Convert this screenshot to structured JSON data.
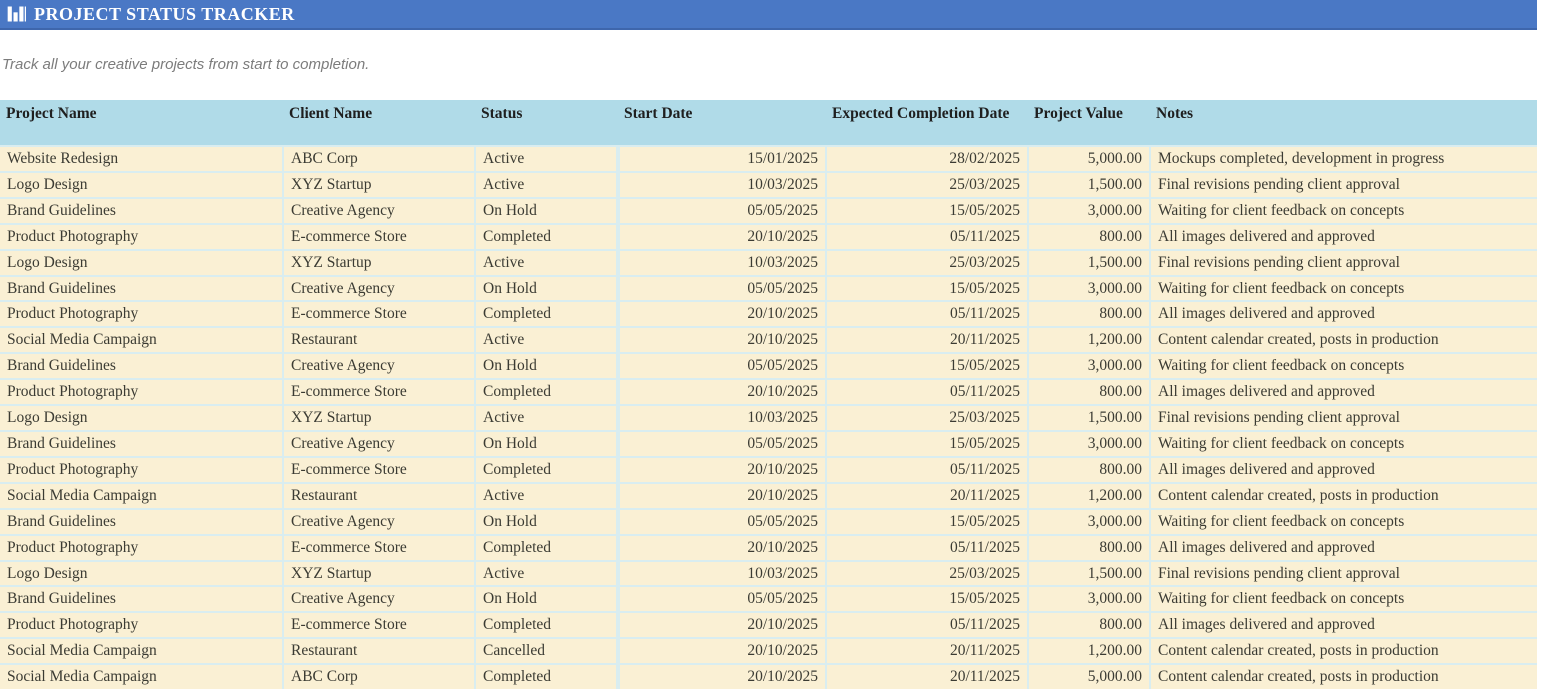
{
  "header": {
    "title": "PROJECT STATUS TRACKER",
    "icon": "bar-chart-icon"
  },
  "subtitle": "Track all your creative projects from start to completion.",
  "colors": {
    "title_bar_bg": "#4a78c5",
    "title_bar_edge": "#3e66ac",
    "title_text": "#ffffff",
    "subtitle_text": "#7c7c7c",
    "header_row_bg": "#b0dbe8",
    "row_bg": "#faf0d4",
    "grid_line": "#d9edf0",
    "body_text": "#3b3b33"
  },
  "table": {
    "columns": [
      {
        "label": "Project Name",
        "key": "project-name",
        "align": "left"
      },
      {
        "label": "Client Name",
        "key": "client-name",
        "align": "left"
      },
      {
        "label": "Status",
        "key": "status",
        "align": "left"
      },
      {
        "label": "Start Date",
        "key": "start-date",
        "align": "right"
      },
      {
        "label": "Expected Completion Date",
        "key": "expected-completion",
        "align": "right"
      },
      {
        "label": "Project Value",
        "key": "project-value",
        "align": "right"
      },
      {
        "label": "Notes",
        "key": "notes",
        "align": "left"
      }
    ],
    "rows": [
      [
        "Website Redesign",
        "ABC Corp",
        "Active",
        "15/01/2025",
        "28/02/2025",
        "5,000.00",
        "Mockups completed, development in progress"
      ],
      [
        "Logo Design",
        "XYZ Startup",
        "Active",
        "10/03/2025",
        "25/03/2025",
        "1,500.00",
        "Final revisions pending client approval"
      ],
      [
        "Brand Guidelines",
        "Creative Agency",
        "On Hold",
        "05/05/2025",
        "15/05/2025",
        "3,000.00",
        "Waiting for client feedback on concepts"
      ],
      [
        "Product Photography",
        "E-commerce Store",
        "Completed",
        "20/10/2025",
        "05/11/2025",
        "800.00",
        "All images delivered and approved"
      ],
      [
        "Logo Design",
        "XYZ Startup",
        "Active",
        "10/03/2025",
        "25/03/2025",
        "1,500.00",
        "Final revisions pending client approval"
      ],
      [
        "Brand Guidelines",
        "Creative Agency",
        "On Hold",
        "05/05/2025",
        "15/05/2025",
        "3,000.00",
        "Waiting for client feedback on concepts"
      ],
      [
        "Product Photography",
        "E-commerce Store",
        "Completed",
        "20/10/2025",
        "05/11/2025",
        "800.00",
        "All images delivered and approved"
      ],
      [
        "Social Media Campaign",
        "Restaurant",
        "Active",
        "20/10/2025",
        "20/11/2025",
        "1,200.00",
        "Content calendar created, posts in production"
      ],
      [
        "Brand Guidelines",
        "Creative Agency",
        "On Hold",
        "05/05/2025",
        "15/05/2025",
        "3,000.00",
        "Waiting for client feedback on concepts"
      ],
      [
        "Product Photography",
        "E-commerce Store",
        "Completed",
        "20/10/2025",
        "05/11/2025",
        "800.00",
        "All images delivered and approved"
      ],
      [
        "Logo Design",
        "XYZ Startup",
        "Active",
        "10/03/2025",
        "25/03/2025",
        "1,500.00",
        "Final revisions pending client approval"
      ],
      [
        "Brand Guidelines",
        "Creative Agency",
        "On Hold",
        "05/05/2025",
        "15/05/2025",
        "3,000.00",
        "Waiting for client feedback on concepts"
      ],
      [
        "Product Photography",
        "E-commerce Store",
        "Completed",
        "20/10/2025",
        "05/11/2025",
        "800.00",
        "All images delivered and approved"
      ],
      [
        "Social Media Campaign",
        "Restaurant",
        "Active",
        "20/10/2025",
        "20/11/2025",
        "1,200.00",
        "Content calendar created, posts in production"
      ],
      [
        "Brand Guidelines",
        "Creative Agency",
        "On Hold",
        "05/05/2025",
        "15/05/2025",
        "3,000.00",
        "Waiting for client feedback on concepts"
      ],
      [
        "Product Photography",
        "E-commerce Store",
        "Completed",
        "20/10/2025",
        "05/11/2025",
        "800.00",
        "All images delivered and approved"
      ],
      [
        "Logo Design",
        "XYZ Startup",
        "Active",
        "10/03/2025",
        "25/03/2025",
        "1,500.00",
        "Final revisions pending client approval"
      ],
      [
        "Brand Guidelines",
        "Creative Agency",
        "On Hold",
        "05/05/2025",
        "15/05/2025",
        "3,000.00",
        "Waiting for client feedback on concepts"
      ],
      [
        "Product Photography",
        "E-commerce Store",
        "Completed",
        "20/10/2025",
        "05/11/2025",
        "800.00",
        "All images delivered and approved"
      ],
      [
        "Social Media Campaign",
        "Restaurant",
        "Cancelled",
        "20/10/2025",
        "20/11/2025",
        "1,200.00",
        "Content calendar created, posts in production"
      ],
      [
        "Social Media Campaign",
        "ABC Corp",
        "Completed",
        "20/10/2025",
        "20/11/2025",
        "5,000.00",
        "Content calendar created, posts in production"
      ]
    ]
  }
}
